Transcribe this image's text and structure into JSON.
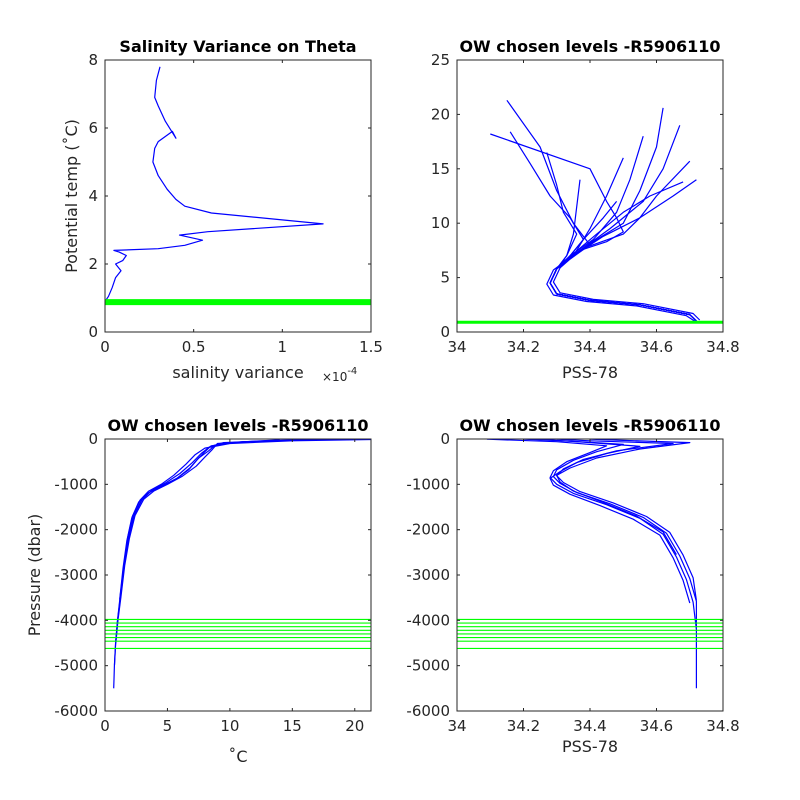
{
  "chart_data": [
    {
      "type": "line",
      "title": "Salinity Variance on Theta",
      "xlabel": "salinity variance",
      "ylabel": "Potential temp (˚C)",
      "x_exponent_label": "×10",
      "x_exponent_power": "-4",
      "xlim": [
        0,
        1.5
      ],
      "ylim": [
        0,
        8
      ],
      "xticks": [
        0,
        0.5,
        1,
        1.5
      ],
      "xtick_labels": [
        "0",
        "0.5",
        "1",
        "1.5"
      ],
      "yticks": [
        0,
        2,
        4,
        6,
        8
      ],
      "ytick_labels": [
        "0",
        "2",
        "4",
        "6",
        "8"
      ],
      "series": [
        {
          "color": "#0000ff",
          "x": [
            0.0,
            0.02,
            0.04,
            0.06,
            0.09,
            0.06,
            0.1,
            0.12,
            0.08,
            0.05,
            0.3,
            0.45,
            0.55,
            0.42,
            0.58,
            1.23,
            0.6,
            0.45,
            0.4,
            0.35,
            0.3,
            0.27,
            0.28,
            0.3,
            0.38,
            0.4,
            0.34,
            0.3,
            0.28,
            0.29,
            0.31
          ],
          "y": [
            0.9,
            1.05,
            1.3,
            1.6,
            1.8,
            2.0,
            2.1,
            2.25,
            2.35,
            2.4,
            2.45,
            2.55,
            2.7,
            2.85,
            2.95,
            3.18,
            3.5,
            3.7,
            3.9,
            4.2,
            4.6,
            5.0,
            5.4,
            5.6,
            5.9,
            5.7,
            6.2,
            6.65,
            6.9,
            7.4,
            7.8
          ]
        }
      ],
      "hlines": [
        {
          "y": 0.88,
          "color": "#00ff00",
          "weight": "thick"
        }
      ]
    },
    {
      "type": "line",
      "title": "OW chosen levels -R5906110",
      "xlabel": "PSS-78",
      "ylabel": "",
      "xlim": [
        34,
        34.8
      ],
      "ylim": [
        0,
        25
      ],
      "xticks": [
        34,
        34.2,
        34.4,
        34.6,
        34.8
      ],
      "xtick_labels": [
        "34",
        "34.2",
        "34.4",
        "34.6",
        "34.8"
      ],
      "yticks": [
        0,
        5,
        10,
        15,
        20,
        25
      ],
      "ytick_labels": [
        "0",
        "5",
        "10",
        "15",
        "20",
        "25"
      ],
      "series": [
        {
          "color": "#0000ff",
          "x": [
            34.72,
            34.7,
            34.55,
            34.4,
            34.3,
            34.28,
            34.3,
            34.32,
            34.37,
            34.45,
            34.5,
            34.48,
            34.45,
            34.4,
            34.1
          ],
          "y": [
            1.0,
            1.6,
            2.5,
            2.9,
            3.5,
            4.5,
            5.8,
            6.5,
            7.5,
            8.3,
            9.2,
            10.5,
            12.0,
            15.0,
            18.2
          ]
        },
        {
          "color": "#0000ff",
          "x": [
            34.73,
            34.71,
            34.56,
            34.41,
            34.31,
            34.29,
            34.31,
            34.34,
            34.39,
            34.5,
            34.55,
            34.6,
            34.7
          ],
          "y": [
            1.1,
            1.7,
            2.6,
            3.0,
            3.6,
            4.6,
            5.9,
            6.7,
            7.8,
            9.0,
            10.5,
            12.5,
            15.7
          ]
        },
        {
          "color": "#0000ff",
          "x": [
            34.72,
            34.69,
            34.54,
            34.39,
            34.29,
            34.27,
            34.29,
            34.33,
            34.4,
            34.35,
            34.3,
            34.25,
            34.15
          ],
          "y": [
            0.9,
            1.5,
            2.4,
            2.8,
            3.4,
            4.4,
            5.7,
            6.6,
            8.0,
            10.0,
            13.0,
            17.0,
            21.3
          ]
        },
        {
          "color": "#0000ff",
          "x": [
            34.72,
            34.7,
            34.55,
            34.4,
            34.3,
            34.28,
            34.3,
            34.35,
            34.42,
            34.5,
            34.55,
            34.6,
            34.62
          ],
          "y": [
            1.0,
            1.6,
            2.5,
            2.9,
            3.5,
            4.5,
            5.8,
            7.0,
            8.5,
            10.0,
            13.0,
            17.0,
            20.6
          ]
        },
        {
          "color": "#0000ff",
          "x": [
            34.72,
            34.7,
            34.55,
            34.4,
            34.3,
            34.28,
            34.3,
            34.36,
            34.44,
            34.55,
            34.65,
            34.72
          ],
          "y": [
            1.0,
            1.6,
            2.5,
            2.9,
            3.5,
            4.5,
            5.8,
            7.2,
            8.8,
            10.5,
            12.5,
            14.0
          ]
        },
        {
          "color": "#0000ff",
          "x": [
            34.72,
            34.7,
            34.55,
            34.4,
            34.3,
            34.28,
            34.3,
            34.34,
            34.38,
            34.34,
            34.28,
            34.22,
            34.16
          ],
          "y": [
            1.0,
            1.6,
            2.5,
            2.9,
            3.5,
            4.5,
            5.8,
            7.0,
            8.5,
            10.5,
            12.5,
            15.5,
            18.4
          ]
        },
        {
          "color": "#0000ff",
          "x": [
            34.72,
            34.7,
            34.55,
            34.4,
            34.3,
            34.28,
            34.3,
            34.34,
            34.41,
            34.48,
            34.52,
            34.56
          ],
          "y": [
            1.0,
            1.6,
            2.5,
            2.9,
            3.5,
            4.5,
            5.8,
            7.0,
            8.5,
            11.0,
            14.0,
            18.0
          ]
        },
        {
          "color": "#0000ff",
          "x": [
            34.72,
            34.7,
            34.55,
            34.4,
            34.3,
            34.28,
            34.3,
            34.33,
            34.36,
            34.32,
            34.3,
            34.27
          ],
          "y": [
            1.0,
            1.6,
            2.5,
            2.9,
            3.5,
            4.5,
            5.8,
            7.0,
            9.0,
            11.0,
            13.5,
            16.5
          ]
        },
        {
          "color": "#0000ff",
          "x": [
            34.72,
            34.7,
            34.55,
            34.4,
            34.3,
            34.28,
            34.3,
            34.37,
            34.46,
            34.56,
            34.62,
            34.67
          ],
          "y": [
            1.0,
            1.6,
            2.5,
            2.9,
            3.5,
            4.5,
            5.8,
            7.5,
            9.5,
            12.0,
            15.0,
            19.0
          ]
        },
        {
          "color": "#0000ff",
          "x": [
            34.72,
            34.7,
            34.55,
            34.4,
            34.3,
            34.28,
            34.3,
            34.35,
            34.42,
            34.5,
            34.58,
            34.68
          ],
          "y": [
            1.0,
            1.6,
            2.5,
            2.9,
            3.5,
            4.5,
            5.8,
            7.2,
            9.0,
            11.0,
            12.5,
            13.8
          ]
        },
        {
          "color": "#0000ff",
          "x": [
            34.72,
            34.7,
            34.55,
            34.4,
            34.3,
            34.28,
            34.3,
            34.35,
            34.4,
            34.45,
            34.5
          ],
          "y": [
            1.0,
            1.6,
            2.5,
            2.9,
            3.5,
            4.5,
            5.8,
            7.0,
            9.5,
            12.5,
            16.0
          ]
        },
        {
          "color": "#0000ff",
          "x": [
            34.72,
            34.7,
            34.55,
            34.4,
            34.3,
            34.28,
            34.3,
            34.34,
            34.38,
            34.44,
            34.48
          ],
          "y": [
            1.0,
            1.6,
            2.5,
            2.9,
            3.5,
            4.5,
            5.8,
            7.0,
            8.5,
            10.5,
            12.0
          ]
        },
        {
          "color": "#0000ff",
          "x": [
            34.72,
            34.7,
            34.55,
            34.4,
            34.3,
            34.28,
            34.3,
            34.33,
            34.35,
            34.37
          ],
          "y": [
            1.0,
            1.6,
            2.5,
            2.9,
            3.5,
            4.5,
            5.8,
            7.0,
            9.0,
            14.0
          ]
        }
      ],
      "hlines": [
        {
          "y": 0.9,
          "color": "#00ff00",
          "weight": "medium"
        }
      ]
    },
    {
      "type": "line",
      "title": "OW chosen levels -R5906110",
      "xlabel": "˚C",
      "ylabel": "Pressure (dbar)",
      "xlim": [
        0,
        21.3
      ],
      "ylim": [
        -6000,
        0
      ],
      "xticks": [
        0,
        5,
        10,
        15,
        20
      ],
      "xtick_labels": [
        "0",
        "5",
        "10",
        "15",
        "20"
      ],
      "yticks": [
        -6000,
        -5000,
        -4000,
        -3000,
        -2000,
        -1000,
        0
      ],
      "ytick_labels": [
        "-6000",
        "-5000",
        "-4000",
        "-3000",
        "-2000",
        "-1000",
        "0"
      ],
      "series": [
        {
          "color": "#0000ff",
          "x": [
            21.3,
            15.0,
            10.0,
            8.0,
            7.2,
            6.5,
            5.5,
            4.5,
            3.5,
            2.8,
            2.2,
            1.8,
            1.5,
            1.2,
            1.0,
            0.85,
            0.75,
            0.72,
            0.7
          ],
          "y": [
            -10,
            -40,
            -100,
            -200,
            -350,
            -550,
            -800,
            -1000,
            -1150,
            -1350,
            -1700,
            -2200,
            -2800,
            -3500,
            -4000,
            -4500,
            -5000,
            -5300,
            -5500
          ]
        },
        {
          "color": "#0000ff",
          "x": [
            20.0,
            14.0,
            9.5,
            8.4,
            7.7,
            7.0,
            6.0,
            4.9,
            3.8,
            3.0,
            2.35,
            1.9,
            1.55,
            1.25,
            1.02,
            0.86,
            0.76
          ],
          "y": [
            -5,
            -30,
            -80,
            -170,
            -320,
            -520,
            -760,
            -960,
            -1120,
            -1320,
            -1680,
            -2180,
            -2780,
            -3480,
            -3980,
            -4480,
            -4980
          ]
        },
        {
          "color": "#0000ff",
          "x": [
            18.0,
            12.0,
            9.0,
            8.6,
            8.0,
            7.3,
            6.2,
            5.0,
            3.9,
            3.1,
            2.4,
            1.95,
            1.58,
            1.27,
            1.04,
            0.87
          ],
          "y": [
            -10,
            -50,
            -100,
            -230,
            -400,
            -600,
            -820,
            -1000,
            -1150,
            -1330,
            -1690,
            -2190,
            -2790,
            -3490,
            -3990,
            -4490
          ]
        },
        {
          "color": "#0000ff",
          "x": [
            16.0,
            11.0,
            8.8,
            8.3,
            7.5,
            6.8,
            5.8,
            4.6,
            3.6,
            2.9,
            2.25,
            1.85,
            1.52,
            1.22,
            1.01,
            0.85
          ],
          "y": [
            -15,
            -60,
            -140,
            -260,
            -420,
            -640,
            -860,
            -1030,
            -1170,
            -1360,
            -1710,
            -2210,
            -2810,
            -3510,
            -4010,
            -4510
          ]
        },
        {
          "color": "#0000ff",
          "x": [
            14.0,
            10.5,
            8.5,
            8.0,
            7.4,
            6.7,
            5.6,
            4.4,
            3.4,
            2.7,
            2.15,
            1.75,
            1.45,
            1.18
          ],
          "y": [
            -20,
            -70,
            -150,
            -280,
            -450,
            -680,
            -900,
            -1060,
            -1200,
            -1390,
            -1740,
            -2240,
            -2840,
            -3540
          ]
        }
      ],
      "hlines": [
        {
          "y": -3980,
          "color": "#00ff00",
          "weight": "thin"
        },
        {
          "y": -4060,
          "color": "#00ff00",
          "weight": "thin"
        },
        {
          "y": -4140,
          "color": "#00ff00",
          "weight": "thin"
        },
        {
          "y": -4220,
          "color": "#00ff00",
          "weight": "thin"
        },
        {
          "y": -4300,
          "color": "#00ff00",
          "weight": "thin"
        },
        {
          "y": -4380,
          "color": "#00ff00",
          "weight": "thin"
        },
        {
          "y": -4460,
          "color": "#00ff00",
          "weight": "thin"
        },
        {
          "y": -4620,
          "color": "#00ff00",
          "weight": "thin"
        }
      ]
    },
    {
      "type": "line",
      "title": "OW chosen levels -R5906110",
      "xlabel": "PSS-78",
      "ylabel": "",
      "xlim": [
        34,
        34.8
      ],
      "ylim": [
        -6000,
        0
      ],
      "xticks": [
        34,
        34.2,
        34.4,
        34.6,
        34.8
      ],
      "xtick_labels": [
        "34",
        "34.2",
        "34.4",
        "34.6",
        "34.8"
      ],
      "yticks": [
        -6000,
        -5000,
        -4000,
        -3000,
        -2000,
        -1000,
        0
      ],
      "ytick_labels": [
        "-6000",
        "-5000",
        "-4000",
        "-3000",
        "-2000",
        "-1000",
        "0"
      ],
      "series": [
        {
          "color": "#0000ff",
          "x": [
            34.09,
            34.3,
            34.45,
            34.4,
            34.33,
            34.29,
            34.28,
            34.3,
            34.35,
            34.45,
            34.55,
            34.62,
            34.66,
            34.69,
            34.71,
            34.72,
            34.72,
            34.72
          ],
          "y": [
            -5,
            -60,
            -150,
            -300,
            -500,
            -700,
            -850,
            -1000,
            -1200,
            -1450,
            -1750,
            -2100,
            -2600,
            -3100,
            -3600,
            -4200,
            -4800,
            -5500
          ]
        },
        {
          "color": "#0000ff",
          "x": [
            34.2,
            34.35,
            34.5,
            34.42,
            34.35,
            34.3,
            34.29,
            34.31,
            34.36,
            34.46,
            34.56,
            34.63,
            34.67,
            34.7,
            34.72,
            34.72
          ],
          "y": [
            -5,
            -50,
            -120,
            -280,
            -470,
            -680,
            -830,
            -980,
            -1180,
            -1430,
            -1730,
            -2080,
            -2580,
            -3080,
            -3580,
            -4180
          ]
        },
        {
          "color": "#0000ff",
          "x": [
            34.3,
            34.4,
            34.65,
            34.48,
            34.38,
            34.32,
            34.3,
            34.32,
            34.37,
            34.47,
            34.57,
            34.64,
            34.68,
            34.71,
            34.72
          ],
          "y": [
            -5,
            -40,
            -100,
            -260,
            -450,
            -660,
            -810,
            -960,
            -1160,
            -1410,
            -1710,
            -2060,
            -2560,
            -3060,
            -3560
          ]
        },
        {
          "color": "#0000ff",
          "x": [
            34.25,
            34.38,
            34.55,
            34.45,
            34.36,
            34.31,
            34.28,
            34.29,
            34.34,
            34.43,
            34.53,
            34.61,
            34.65,
            34.68,
            34.7
          ],
          "y": [
            -5,
            -70,
            -160,
            -320,
            -520,
            -720,
            -870,
            -1020,
            -1220,
            -1470,
            -1770,
            -2120,
            -2620,
            -3120,
            -3620
          ]
        },
        {
          "color": "#0000ff",
          "x": [
            34.4,
            34.5,
            34.7,
            34.55,
            34.42,
            34.34,
            34.3,
            34.31,
            34.35,
            34.44,
            34.54,
            34.62,
            34.66
          ],
          "y": [
            -5,
            -30,
            -80,
            -220,
            -420,
            -640,
            -800,
            -950,
            -1150,
            -1400,
            -1700,
            -2050,
            -2550
          ]
        }
      ],
      "hlines": [
        {
          "y": -3980,
          "color": "#00ff00",
          "weight": "thin"
        },
        {
          "y": -4060,
          "color": "#00ff00",
          "weight": "thin"
        },
        {
          "y": -4140,
          "color": "#00ff00",
          "weight": "thin"
        },
        {
          "y": -4220,
          "color": "#00ff00",
          "weight": "thin"
        },
        {
          "y": -4300,
          "color": "#00ff00",
          "weight": "thin"
        },
        {
          "y": -4380,
          "color": "#00ff00",
          "weight": "thin"
        },
        {
          "y": -4460,
          "color": "#00ff00",
          "weight": "thin"
        },
        {
          "y": -4620,
          "color": "#00ff00",
          "weight": "thin"
        }
      ]
    }
  ]
}
